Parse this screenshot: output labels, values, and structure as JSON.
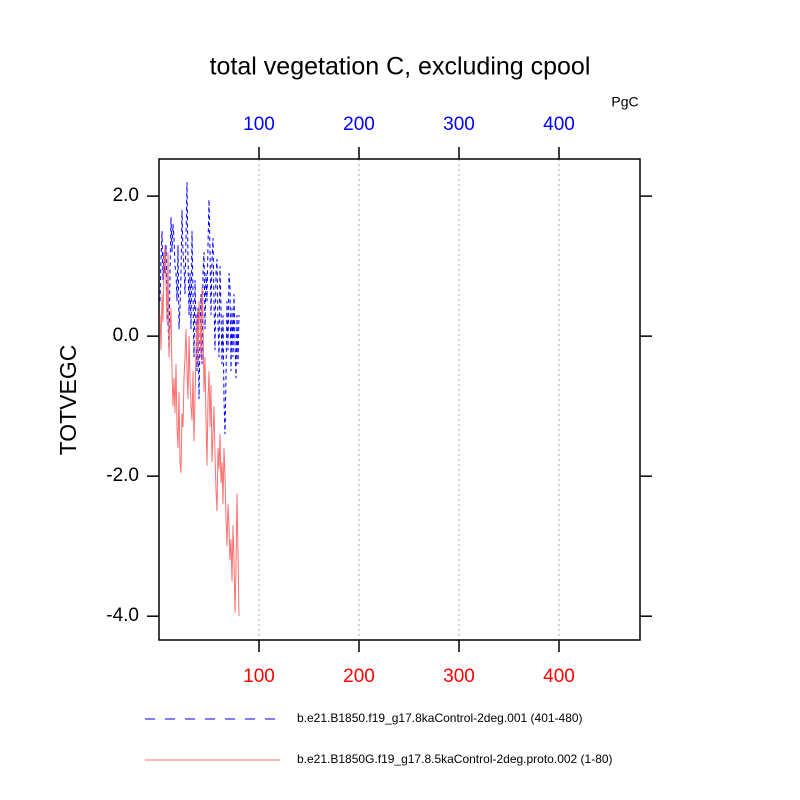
{
  "chart_data": {
    "type": "line",
    "title": "total vegetation C, excluding cpool",
    "units": "PgC",
    "y_label": "TOTVEGC",
    "x": [
      1,
      2,
      3,
      4,
      5,
      6,
      7,
      8,
      9,
      10,
      11,
      12,
      13,
      14,
      15,
      16,
      17,
      18,
      19,
      20,
      21,
      22,
      23,
      24,
      25,
      26,
      27,
      28,
      29,
      30,
      31,
      32,
      33,
      34,
      35,
      36,
      37,
      38,
      39,
      40,
      41,
      42,
      43,
      44,
      45,
      46,
      47,
      48,
      49,
      50,
      51,
      52,
      53,
      54,
      55,
      56,
      57,
      58,
      59,
      60,
      61,
      62,
      63,
      64,
      65,
      66,
      67,
      68,
      69,
      70,
      71,
      72,
      73,
      74,
      75,
      76,
      77,
      78,
      79,
      80
    ],
    "series": [
      {
        "name": "b.e21.B1850.f19_g17.8kaControl-2deg.001 (401-480)",
        "color": "#0000ff",
        "dash": true,
        "values": [
          0.5,
          1.1,
          1.5,
          0.8,
          1.2,
          0.9,
          1.3,
          0.6,
          0.2,
          -0.2,
          0.9,
          1.7,
          1.2,
          1.6,
          1.4,
          1.0,
          0.9,
          0.5,
          1.3,
          0.1,
          0.4,
          0.9,
          1.8,
          1.2,
          1.0,
          0.6,
          1.4,
          2.2,
          1.1,
          0.3,
          0.9,
          0.1,
          1.5,
          0.6,
          -0.3,
          0.8,
          0.2,
          -0.5,
          0.4,
          -0.9,
          0.0,
          0.6,
          -0.4,
          0.9,
          1.2,
          0.1,
          0.9,
          0.5,
          1.3,
          1.95,
          1.2,
          0.3,
          1.1,
          1.4,
          0.5,
          -0.2,
          0.9,
          1.1,
          0.2,
          -0.3,
          1.0,
          0.4,
          -0.4,
          0.3,
          -0.9,
          -1.4,
          -0.6,
          0.5,
          -0.2,
          0.9,
          0.7,
          -0.5,
          0.4,
          -0.3,
          0.6,
          -0.1,
          -0.6,
          0.3,
          -0.4,
          0.3
        ]
      },
      {
        "name": "b.e21.B1850G.f19_g17.8.5kaControl-2deg.proto.002 (1-80)",
        "color": "#ff7070",
        "dash": false,
        "values": [
          0.3,
          -0.2,
          0.6,
          0.2,
          1.0,
          1.3,
          0.8,
          0.2,
          1.2,
          -0.3,
          0.1,
          0.4,
          -0.5,
          -1.0,
          -0.6,
          -1.1,
          -0.4,
          -1.3,
          -1.6,
          -0.8,
          -1.8,
          -1.95,
          -1.1,
          -1.3,
          -0.6,
          -0.3,
          0.1,
          -0.5,
          -0.9,
          0.0,
          -0.6,
          -1.0,
          -1.2,
          -0.5,
          -1.5,
          -0.9,
          -0.2,
          0.3,
          -0.4,
          0.5,
          0.2,
          -0.3,
          0.7,
          0.3,
          -0.8,
          -0.3,
          -1.2,
          -1.85,
          -0.9,
          -0.5,
          -1.3,
          -0.7,
          -1.8,
          -1.4,
          -1.0,
          -1.7,
          -2.2,
          -2.5,
          -1.6,
          -1.9,
          -1.4,
          -2.1,
          -1.8,
          -2.4,
          -1.6,
          -2.0,
          -2.6,
          -3.0,
          -2.4,
          -2.7,
          -3.2,
          -2.9,
          -3.5,
          -2.7,
          -3.2,
          -3.95,
          -3.3,
          -2.25,
          -3.1,
          -4.0
        ]
      }
    ],
    "xlim": [
      0,
      481
    ],
    "ylim": [
      -4.34,
      2.53
    ],
    "xticks": [
      100,
      200,
      300,
      400
    ],
    "x2ticks": [
      100,
      200,
      300,
      400
    ],
    "xtick_color": "#ff0000",
    "x2tick_color": "#0000ff",
    "yticks": [
      {
        "value": -4,
        "label": "-4.0"
      },
      {
        "value": -2,
        "label": "-2.0"
      },
      {
        "value": 0,
        "label": "0.0"
      },
      {
        "value": 2,
        "label": "2.0"
      }
    ],
    "grid": true
  }
}
